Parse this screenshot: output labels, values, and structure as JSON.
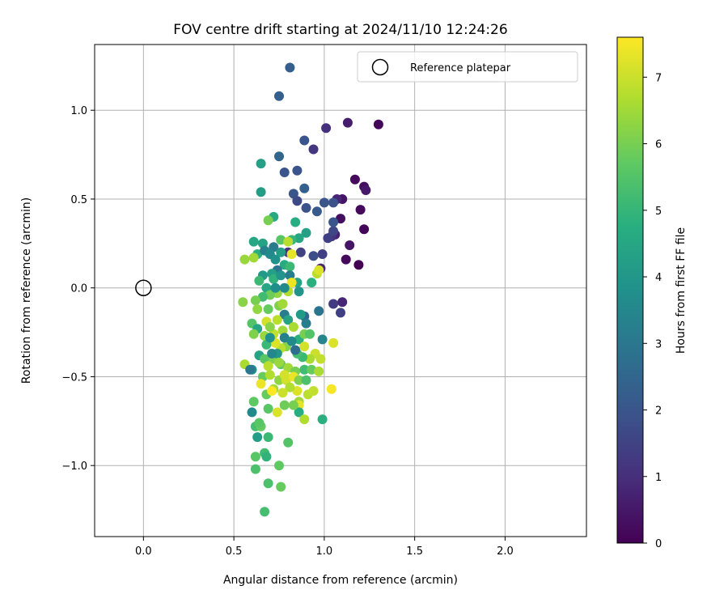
{
  "chart_data": {
    "type": "scatter",
    "title": "FOV centre drift starting at 2024/11/10 12:24:26",
    "xlabel": "Angular distance from reference (arcmin)",
    "ylabel": "Rotation from reference (arcmin)",
    "xlim": [
      -0.27,
      2.45
    ],
    "ylim": [
      -1.4,
      1.37
    ],
    "xticks": [
      0.0,
      0.5,
      1.0,
      1.5,
      2.0
    ],
    "xtick_labels": [
      "0.0",
      "0.5",
      "1.0",
      "1.5",
      "2.0"
    ],
    "yticks": [
      -1.0,
      -0.5,
      0.0,
      0.5,
      1.0
    ],
    "ytick_labels": [
      "−1.0",
      "−0.5",
      "0.0",
      "0.5",
      "1.0"
    ],
    "grid": true,
    "legend": {
      "placement": "top-right",
      "entries": [
        "Reference platepar"
      ]
    },
    "reference": {
      "name": "Reference platepar",
      "x": 0.0,
      "y": 0.0,
      "marker": "hollow-circle"
    },
    "colorbar": {
      "label": "Hours from first FF file",
      "range": [
        0,
        7.6
      ],
      "ticks": [
        0,
        1,
        2,
        3,
        4,
        5,
        6,
        7
      ],
      "tick_labels": [
        "0",
        "1",
        "2",
        "3",
        "4",
        "5",
        "6",
        "7"
      ],
      "colormap": "viridis"
    },
    "points": [
      [
        1.3,
        0.92,
        0.1
      ],
      [
        1.13,
        0.93,
        0.6
      ],
      [
        1.01,
        0.9,
        1.0
      ],
      [
        1.17,
        0.61,
        0.2
      ],
      [
        1.22,
        0.57,
        0.3
      ],
      [
        1.23,
        0.55,
        0.5
      ],
      [
        1.1,
        0.5,
        0.4
      ],
      [
        1.07,
        0.5,
        0.8
      ],
      [
        1.2,
        0.44,
        0.2
      ],
      [
        1.09,
        0.39,
        0.3
      ],
      [
        1.22,
        0.33,
        0.1
      ],
      [
        1.14,
        0.24,
        0.4
      ],
      [
        1.19,
        0.13,
        0.0
      ],
      [
        1.12,
        0.16,
        0.2
      ],
      [
        1.06,
        0.3,
        0.7
      ],
      [
        1.04,
        0.29,
        1.1
      ],
      [
        1.02,
        0.28,
        1.4
      ],
      [
        1.05,
        0.32,
        1.6
      ],
      [
        1.05,
        0.37,
        2.0
      ],
      [
        1.05,
        0.48,
        1.9
      ],
      [
        1.0,
        0.48,
        2.0
      ],
      [
        0.94,
        0.78,
        1.2
      ],
      [
        0.89,
        0.83,
        2.0
      ],
      [
        0.81,
        1.24,
        2.3
      ],
      [
        0.75,
        1.08,
        2.3
      ],
      [
        0.75,
        0.74,
        2.5
      ],
      [
        0.78,
        0.65,
        2.0
      ],
      [
        0.85,
        0.66,
        2.0
      ],
      [
        0.89,
        0.56,
        2.3
      ],
      [
        0.83,
        0.53,
        2.0
      ],
      [
        0.85,
        0.49,
        1.7
      ],
      [
        0.9,
        0.45,
        1.9
      ],
      [
        0.96,
        0.43,
        2.1
      ],
      [
        0.99,
        0.19,
        1.4
      ],
      [
        0.94,
        0.18,
        1.8
      ],
      [
        0.87,
        0.2,
        1.5
      ],
      [
        0.8,
        0.2,
        1.1
      ],
      [
        0.98,
        0.11,
        0.8
      ],
      [
        1.05,
        -0.09,
        1.3
      ],
      [
        1.1,
        -0.08,
        0.8
      ],
      [
        1.09,
        -0.14,
        1.4
      ],
      [
        0.97,
        -0.13,
        2.9
      ],
      [
        0.89,
        -0.16,
        2.5
      ],
      [
        0.9,
        -0.2,
        3.2
      ],
      [
        0.99,
        -0.29,
        3.4
      ],
      [
        0.9,
        0.31,
        4.3
      ],
      [
        0.84,
        0.37,
        4.7
      ],
      [
        0.86,
        0.28,
        4.5
      ],
      [
        0.82,
        0.27,
        5.0
      ],
      [
        0.72,
        0.4,
        4.6
      ],
      [
        0.69,
        0.38,
        6.0
      ],
      [
        0.65,
        0.7,
        4.3
      ],
      [
        0.65,
        0.54,
        4.2
      ],
      [
        0.61,
        0.26,
        4.5
      ],
      [
        0.66,
        0.25,
        4.4
      ],
      [
        0.63,
        0.19,
        4.8
      ],
      [
        0.67,
        0.21,
        3.3
      ],
      [
        0.72,
        0.23,
        3.1
      ],
      [
        0.7,
        0.19,
        3.6
      ],
      [
        0.73,
        0.16,
        3.8
      ],
      [
        0.76,
        0.27,
        5.6
      ],
      [
        0.76,
        0.2,
        4.2
      ],
      [
        0.8,
        0.26,
        6.8
      ],
      [
        0.82,
        0.19,
        7.3
      ],
      [
        0.78,
        0.13,
        4.6
      ],
      [
        0.81,
        0.12,
        5.1
      ],
      [
        0.74,
        0.1,
        3.0
      ],
      [
        0.71,
        0.08,
        4.3
      ],
      [
        0.66,
        0.07,
        4.1
      ],
      [
        0.64,
        0.04,
        5.1
      ],
      [
        0.61,
        0.17,
        6.5
      ],
      [
        0.56,
        0.16,
        6.4
      ],
      [
        0.68,
        0.0,
        4.5
      ],
      [
        0.72,
        0.05,
        4.9
      ],
      [
        0.76,
        0.07,
        3.9
      ],
      [
        0.81,
        0.07,
        3.2
      ],
      [
        0.85,
        0.03,
        4.4
      ],
      [
        0.93,
        0.03,
        4.8
      ],
      [
        0.96,
        0.08,
        6.8
      ],
      [
        0.97,
        0.1,
        7.2
      ],
      [
        0.82,
        0.03,
        7.4
      ],
      [
        0.8,
        -0.02,
        6.7
      ],
      [
        0.74,
        -0.03,
        6.3
      ],
      [
        0.7,
        -0.04,
        5.9
      ],
      [
        0.66,
        -0.05,
        5.2
      ],
      [
        0.62,
        -0.07,
        6.0
      ],
      [
        0.55,
        -0.08,
        6.2
      ],
      [
        0.63,
        -0.12,
        6.3
      ],
      [
        0.69,
        -0.12,
        5.8
      ],
      [
        0.75,
        -0.1,
        6.1
      ],
      [
        0.78,
        -0.15,
        3.2
      ],
      [
        0.8,
        -0.18,
        4.4
      ],
      [
        0.74,
        -0.18,
        6.8
      ],
      [
        0.68,
        -0.19,
        7.1
      ],
      [
        0.6,
        -0.2,
        5.5
      ],
      [
        0.63,
        -0.23,
        4.5
      ],
      [
        0.61,
        -0.26,
        6.1
      ],
      [
        0.67,
        -0.27,
        6.4
      ],
      [
        0.72,
        -0.26,
        6.9
      ],
      [
        0.77,
        -0.24,
        6.5
      ],
      [
        0.83,
        -0.22,
        6.6
      ],
      [
        0.86,
        -0.29,
        4.8
      ],
      [
        0.89,
        -0.26,
        6.0
      ],
      [
        0.92,
        -0.26,
        5.5
      ],
      [
        0.89,
        -0.33,
        7.1
      ],
      [
        0.95,
        -0.37,
        7.0
      ],
      [
        0.98,
        -0.4,
        6.9
      ],
      [
        1.05,
        -0.31,
        7.2
      ],
      [
        0.92,
        -0.4,
        6.6
      ],
      [
        0.88,
        -0.39,
        5.1
      ],
      [
        0.85,
        -0.37,
        5.3
      ],
      [
        0.79,
        -0.33,
        6.2
      ],
      [
        0.76,
        -0.34,
        6.8
      ],
      [
        0.73,
        -0.31,
        7.2
      ],
      [
        0.68,
        -0.32,
        5.1
      ],
      [
        0.64,
        -0.38,
        4.4
      ],
      [
        0.67,
        -0.4,
        5.6
      ],
      [
        0.72,
        -0.4,
        6.1
      ],
      [
        0.76,
        -0.43,
        5.7
      ],
      [
        0.8,
        -0.45,
        6.5
      ],
      [
        0.84,
        -0.47,
        6.0
      ],
      [
        0.89,
        -0.46,
        5.2
      ],
      [
        0.93,
        -0.46,
        5.8
      ],
      [
        0.97,
        -0.47,
        6.6
      ],
      [
        0.56,
        -0.43,
        6.6
      ],
      [
        0.6,
        -0.46,
        3.9
      ],
      [
        0.66,
        -0.5,
        5.8
      ],
      [
        0.7,
        -0.49,
        6.7
      ],
      [
        0.75,
        -0.52,
        6.3
      ],
      [
        0.79,
        -0.52,
        7.1
      ],
      [
        0.83,
        -0.5,
        7.4
      ],
      [
        0.86,
        -0.52,
        6.1
      ],
      [
        0.9,
        -0.52,
        5.4
      ],
      [
        0.85,
        -0.58,
        7.2
      ],
      [
        0.91,
        -0.6,
        6.8
      ],
      [
        0.94,
        -0.58,
        6.9
      ],
      [
        1.04,
        -0.57,
        7.5
      ],
      [
        0.81,
        -0.56,
        6.7
      ],
      [
        0.77,
        -0.59,
        7.0
      ],
      [
        0.72,
        -0.57,
        6.5
      ],
      [
        0.68,
        -0.6,
        5.8
      ],
      [
        0.61,
        -0.64,
        5.7
      ],
      [
        0.65,
        -0.54,
        7.4
      ],
      [
        0.86,
        -0.64,
        6.5
      ],
      [
        0.86,
        -0.66,
        7.3
      ],
      [
        0.86,
        -0.7,
        4.7
      ],
      [
        0.83,
        -0.66,
        6.0
      ],
      [
        0.78,
        -0.66,
        5.9
      ],
      [
        0.74,
        -0.7,
        7.2
      ],
      [
        0.69,
        -0.68,
        5.6
      ],
      [
        0.89,
        -0.74,
        6.7
      ],
      [
        0.99,
        -0.74,
        4.8
      ],
      [
        0.6,
        -0.7,
        3.6
      ],
      [
        0.62,
        -0.78,
        5.3
      ],
      [
        0.65,
        -0.78,
        5.8
      ],
      [
        0.64,
        -0.76,
        5.6
      ],
      [
        0.69,
        -0.84,
        5.1
      ],
      [
        0.63,
        -0.84,
        4.2
      ],
      [
        0.8,
        -0.87,
        5.5
      ],
      [
        0.62,
        -0.95,
        5.6
      ],
      [
        0.67,
        -0.93,
        5.2
      ],
      [
        0.68,
        -0.95,
        4.9
      ],
      [
        0.75,
        -1.0,
        5.7
      ],
      [
        0.62,
        -1.02,
        5.4
      ],
      [
        0.69,
        -1.1,
        5.4
      ],
      [
        0.76,
        -1.12,
        5.8
      ],
      [
        0.67,
        -1.26,
        5.3
      ],
      [
        0.59,
        -0.46,
        3.0
      ],
      [
        0.78,
        -0.28,
        3.3
      ],
      [
        0.74,
        -0.37,
        4.0
      ],
      [
        0.82,
        -0.3,
        3.6
      ],
      [
        0.87,
        -0.15,
        4.1
      ],
      [
        0.84,
        -0.35,
        2.7
      ],
      [
        0.71,
        -0.37,
        3.5
      ],
      [
        0.73,
        0.0,
        3.7
      ],
      [
        0.78,
        0.0,
        3.6
      ],
      [
        0.86,
        -0.02,
        3.9
      ],
      [
        0.7,
        -0.28,
        3.8
      ],
      [
        0.77,
        -0.09,
        6.5
      ],
      [
        0.7,
        -0.22,
        6.2
      ],
      [
        0.75,
        -0.42,
        6.4
      ],
      [
        0.69,
        -0.44,
        6.8
      ],
      [
        0.78,
        -0.49,
        7.1
      ],
      [
        0.71,
        -0.58,
        7.6
      ]
    ]
  }
}
